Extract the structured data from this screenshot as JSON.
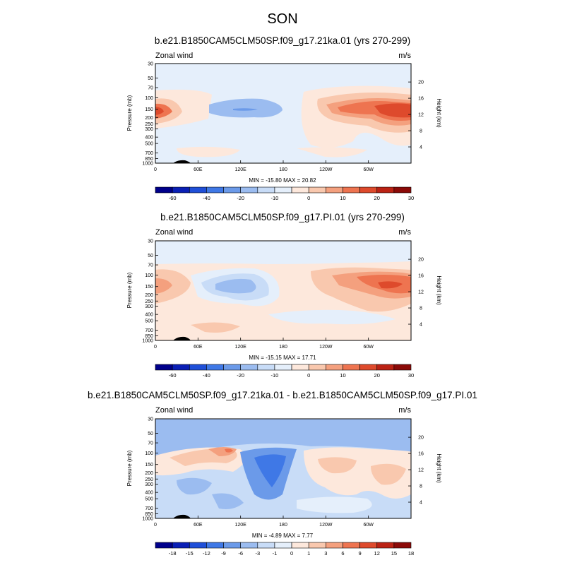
{
  "figure": {
    "title": "SON"
  },
  "colors": {
    "wind": [
      "#00008b",
      "#0a1fb5",
      "#1f4fd8",
      "#3f78e6",
      "#6b9ae9",
      "#9bbcf0",
      "#c8dcf7",
      "#e5effb",
      "#fde8dc",
      "#f9c8ae",
      "#f4a07e",
      "#ee7450",
      "#de4a2c",
      "#bb2214",
      "#8b0a08"
    ],
    "diff": [
      "#00008b",
      "#0a1fb5",
      "#1f4fd8",
      "#3f78e6",
      "#6b9ae9",
      "#9bbcf0",
      "#c8dcf7",
      "#e5effb",
      "#fde8dc",
      "#f9c8ae",
      "#f4a07e",
      "#ee7450",
      "#de4a2c",
      "#bb2214",
      "#8b0a08"
    ]
  },
  "chart_data": [
    {
      "type": "heatmap",
      "title": "b.e21.B1850CAM5CLM50SP.f09_g17.21ka.01 (yrs 270-299)",
      "left_label": "Zonal wind",
      "units": "m/s",
      "ylabel": "Pressure (mb)",
      "y2label": "Height (km)",
      "x_ticks": [
        "0",
        "60E",
        "120E",
        "180",
        "120W",
        "60W"
      ],
      "p_ticks": [
        "30",
        "50",
        "70",
        "100",
        "150",
        "200",
        "250",
        "300",
        "400",
        "500",
        "700",
        "850",
        "1000"
      ],
      "z_ticks": [
        "4",
        "8",
        "12",
        "16",
        "20"
      ],
      "stats": "MIN = -15.80  MAX = 20.82",
      "min": -15.8,
      "max": 20.82,
      "colorbar_labels": [
        "-60",
        "-40",
        "-20",
        "-10",
        "0",
        "10",
        "20",
        "30"
      ]
    },
    {
      "type": "heatmap",
      "title": "b.e21.B1850CAM5CLM50SP.f09_g17.PI.01 (yrs 270-299)",
      "left_label": "Zonal wind",
      "units": "m/s",
      "ylabel": "Pressure (mb)",
      "y2label": "Height (km)",
      "x_ticks": [
        "0",
        "60E",
        "120E",
        "180",
        "120W",
        "60W"
      ],
      "p_ticks": [
        "30",
        "50",
        "70",
        "100",
        "150",
        "200",
        "250",
        "300",
        "400",
        "500",
        "700",
        "850",
        "1000"
      ],
      "z_ticks": [
        "4",
        "8",
        "12",
        "16",
        "20"
      ],
      "stats": "MIN = -15.15  MAX = 17.71",
      "min": -15.15,
      "max": 17.71,
      "colorbar_labels": [
        "-60",
        "-40",
        "-20",
        "-10",
        "0",
        "10",
        "20",
        "30"
      ]
    },
    {
      "type": "heatmap",
      "title": "b.e21.B1850CAM5CLM50SP.f09_g17.21ka.01 - b.e21.B1850CAM5CLM50SP.f09_g17.PI.01",
      "left_label": "Zonal wind",
      "units": "m/s",
      "ylabel": "Pressure (mb)",
      "y2label": "Height (km)",
      "x_ticks": [
        "0",
        "60E",
        "120E",
        "180",
        "120W",
        "60W"
      ],
      "p_ticks": [
        "30",
        "50",
        "70",
        "100",
        "150",
        "200",
        "250",
        "300",
        "400",
        "500",
        "700",
        "850",
        "1000"
      ],
      "z_ticks": [
        "4",
        "8",
        "12",
        "16",
        "20"
      ],
      "stats": "MIN = -4.89  MAX = 7.77",
      "min": -4.89,
      "max": 7.77,
      "colorbar_labels": [
        "-18",
        "-15",
        "-12",
        "-9",
        "-6",
        "-3",
        "-1",
        "0",
        "1",
        "3",
        "6",
        "9",
        "12",
        "15",
        "18"
      ]
    }
  ]
}
